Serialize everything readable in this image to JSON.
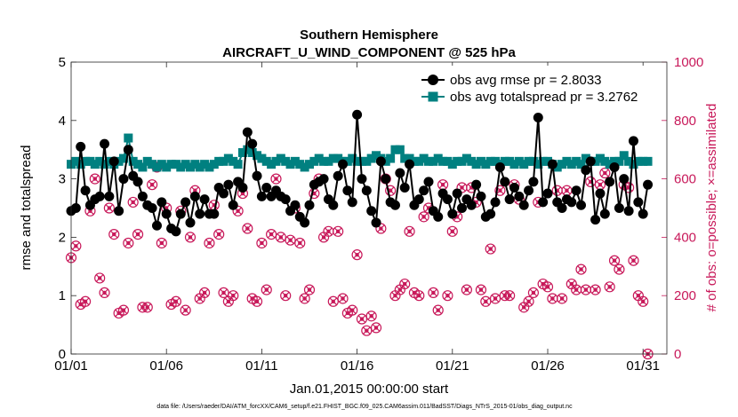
{
  "chart_data": {
    "type": "line",
    "title": "Southern Hemisphere",
    "subtitle": "AIRCRAFT_U_WIND_COMPONENT @ 525 hPa",
    "xlabel": "Jan.01,2015 00:00:00 start",
    "ylabel": "rmse and totalspread",
    "y2label": "# of obs: o=possible; ×=assimilated",
    "footnote": "data file: /Users/raeder/DAI/ATM_forcXX/CAM6_setup/f.e21.FHIST_BGC.f09_025.CAM6assim.011/BadSST/Diags_NTrS_2015-01/obs_diag_output.nc",
    "xlim": [
      1,
      32.25
    ],
    "ylim": [
      0,
      5
    ],
    "y2lim": [
      0,
      1000
    ],
    "x_ticks": [
      1,
      6,
      11,
      16,
      21,
      26,
      31
    ],
    "x_tick_labels": [
      "01/01",
      "01/06",
      "01/11",
      "01/16",
      "01/21",
      "01/26",
      "01/31"
    ],
    "y_ticks": [
      0,
      1,
      2,
      3,
      4,
      5
    ],
    "y2_ticks": [
      0,
      200,
      400,
      600,
      800,
      1000
    ],
    "x_start": 1.0,
    "x_step": 0.25,
    "legend": [
      "obs avg rmse pr = 2.8033",
      "obs avg totalspread pr = 3.2762"
    ],
    "legend_position": "top-right",
    "series": [
      {
        "name": "obs avg rmse pr = 2.8033",
        "color": "#000000",
        "marker": "circle",
        "axis": "left",
        "values": [
          2.45,
          2.5,
          3.55,
          2.8,
          2.55,
          2.65,
          2.7,
          3.6,
          2.7,
          3.3,
          2.45,
          3.0,
          3.5,
          3.05,
          2.95,
          2.7,
          2.55,
          2.5,
          2.2,
          2.6,
          2.4,
          2.15,
          2.1,
          2.4,
          2.6,
          2.25,
          2.7,
          2.4,
          2.65,
          2.4,
          2.4,
          2.85,
          2.75,
          2.9,
          2.55,
          2.95,
          2.85,
          3.8,
          3.6,
          3.05,
          2.7,
          2.85,
          2.7,
          2.8,
          2.7,
          2.65,
          2.45,
          2.55,
          2.35,
          2.25,
          2.55,
          2.9,
          2.95,
          3.0,
          2.65,
          2.55,
          3.05,
          3.25,
          2.8,
          2.6,
          4.1,
          3.0,
          2.8,
          2.45,
          2.25,
          3.3,
          3.0,
          2.6,
          2.55,
          3.1,
          2.85,
          3.25,
          2.55,
          2.65,
          2.8,
          2.95,
          2.45,
          2.35,
          2.75,
          2.65,
          2.4,
          2.75,
          2.5,
          2.65,
          2.55,
          2.9,
          2.7,
          2.35,
          2.4,
          2.6,
          3.2,
          2.95,
          2.65,
          2.85,
          2.7,
          2.55,
          2.8,
          2.95,
          4.05,
          2.6,
          2.75,
          3.25,
          2.6,
          2.5,
          2.65,
          2.6,
          2.8,
          2.55,
          3.15,
          3.3,
          2.3,
          2.75,
          2.4,
          2.95,
          3.2,
          2.5,
          3.0,
          2.45,
          3.65,
          2.6,
          2.4,
          2.9
        ]
      },
      {
        "name": "obs avg totalspread pr = 3.2762",
        "color": "#008080",
        "marker": "square",
        "axis": "left",
        "values": [
          3.25,
          3.3,
          3.25,
          3.3,
          3.3,
          3.25,
          3.3,
          3.25,
          3.3,
          3.25,
          3.3,
          3.35,
          3.7,
          3.3,
          3.25,
          3.2,
          3.3,
          3.25,
          3.2,
          3.25,
          3.2,
          3.25,
          3.25,
          3.2,
          3.25,
          3.2,
          3.25,
          3.2,
          3.25,
          3.2,
          3.25,
          3.3,
          3.3,
          3.35,
          3.3,
          3.25,
          3.45,
          3.5,
          3.45,
          3.4,
          3.35,
          3.3,
          3.25,
          3.3,
          3.35,
          3.3,
          3.25,
          3.3,
          3.25,
          3.2,
          3.25,
          3.3,
          3.35,
          3.3,
          3.3,
          3.35,
          3.35,
          3.3,
          3.3,
          3.35,
          3.3,
          3.3,
          3.3,
          3.35,
          3.4,
          3.35,
          3.3,
          3.35,
          3.5,
          3.5,
          3.35,
          3.35,
          3.3,
          3.3,
          3.35,
          3.3,
          3.3,
          3.35,
          3.3,
          3.3,
          3.25,
          3.3,
          3.3,
          3.35,
          3.3,
          3.25,
          3.3,
          3.25,
          3.3,
          3.3,
          3.25,
          3.3,
          3.3,
          3.25,
          3.3,
          3.25,
          3.3,
          3.3,
          3.25,
          3.3,
          3.3,
          3.25,
          3.2,
          3.25,
          3.3,
          3.25,
          3.3,
          3.25,
          3.35,
          3.3,
          3.3,
          3.35,
          3.3,
          3.25,
          3.3,
          3.3,
          3.4,
          3.3,
          3.25,
          3.3,
          3.3,
          3.3
        ]
      },
      {
        "name": "obs possible / assimilated",
        "color": "#c8195a",
        "marker": "circle-x",
        "axis": "right",
        "values": [
          330,
          370,
          170,
          180,
          490,
          600,
          260,
          210,
          500,
          410,
          140,
          150,
          380,
          520,
          410,
          160,
          160,
          580,
          640,
          380,
          500,
          170,
          180,
          490,
          150,
          400,
          560,
          190,
          210,
          380,
          510,
          410,
          210,
          180,
          200,
          490,
          550,
          430,
          190,
          180,
          380,
          220,
          410,
          600,
          400,
          200,
          390,
          500,
          380,
          190,
          220,
          550,
          600,
          400,
          420,
          180,
          420,
          190,
          140,
          150,
          340,
          120,
          80,
          130,
          90,
          430,
          600,
          560,
          200,
          220,
          240,
          420,
          210,
          200,
          470,
          500,
          210,
          150,
          580,
          200,
          420,
          470,
          570,
          220,
          570,
          520,
          220,
          180,
          360,
          190,
          560,
          200,
          200,
          580,
          530,
          160,
          180,
          210,
          520,
          240,
          230,
          190,
          560,
          190,
          560,
          240,
          220,
          290,
          220,
          590,
          220,
          580,
          620,
          230,
          320,
          290,
          580,
          570,
          320,
          200,
          180,
          0
        ]
      }
    ]
  }
}
